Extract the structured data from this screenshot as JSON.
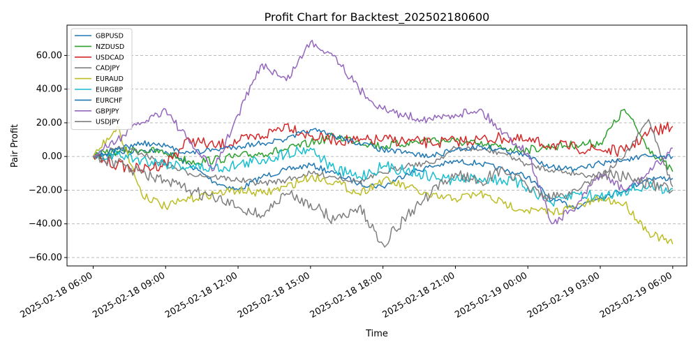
{
  "chart_data": {
    "type": "line",
    "title": "Profit Chart for Backtest_202502180600",
    "xlabel": "Time",
    "ylabel": "Pair Profit",
    "ylim": [
      -65,
      78
    ],
    "xlim": [
      "2025-02-18 04:55",
      "2025-02-19 06:35"
    ],
    "y_ticks": [
      -60,
      -40,
      -20,
      0,
      20,
      40,
      60
    ],
    "y_tick_labels": [
      "−60.00",
      "−40.00",
      "−20.00",
      "0.00",
      "20.00",
      "40.00",
      "60.00"
    ],
    "x_ticks": [
      "2025-02-18 06:00",
      "2025-02-18 09:00",
      "2025-02-18 12:00",
      "2025-02-18 15:00",
      "2025-02-18 18:00",
      "2025-02-18 21:00",
      "2025-02-19 00:00",
      "2025-02-19 03:00",
      "2025-02-19 06:00"
    ],
    "x_tick_labels": [
      "2025-02-18 06:00",
      "2025-02-18 09:00",
      "2025-02-18 12:00",
      "2025-02-18 15:00",
      "2025-02-18 18:00",
      "2025-02-18 21:00",
      "2025-02-19 00:00",
      "2025-02-19 03:00",
      "2025-02-19 06:00"
    ],
    "grid": "horizontal dashed",
    "legend": "top-left",
    "x": [
      "2025-02-18 06:00",
      "2025-02-18 07:00",
      "2025-02-18 08:00",
      "2025-02-18 09:00",
      "2025-02-18 10:00",
      "2025-02-18 11:00",
      "2025-02-18 12:00",
      "2025-02-18 13:00",
      "2025-02-18 14:00",
      "2025-02-18 15:00",
      "2025-02-18 16:00",
      "2025-02-18 17:00",
      "2025-02-18 18:00",
      "2025-02-18 19:00",
      "2025-02-18 20:00",
      "2025-02-18 21:00",
      "2025-02-18 22:00",
      "2025-02-18 23:00",
      "2025-02-19 00:00",
      "2025-02-19 01:00",
      "2025-02-19 02:00",
      "2025-02-19 03:00",
      "2025-02-19 04:00",
      "2025-02-19 05:00",
      "2025-02-19 06:00"
    ],
    "series": [
      {
        "name": "GBPUSD",
        "color": "#1f77b4",
        "values": [
          0,
          2,
          4,
          3,
          -5,
          -15,
          -20,
          -12,
          -8,
          -5,
          -10,
          -16,
          -18,
          -10,
          -6,
          -3,
          -4,
          -8,
          -12,
          -26,
          -30,
          -24,
          -20,
          -13,
          -13
        ]
      },
      {
        "name": "NZDUSD",
        "color": "#2ca02c",
        "values": [
          0,
          3,
          4,
          2,
          -3,
          -2,
          0,
          2,
          4,
          8,
          12,
          9,
          6,
          8,
          10,
          9,
          7,
          5,
          4,
          6,
          7,
          8,
          28,
          5,
          -9
        ]
      },
      {
        "name": "USDCAD",
        "color": "#d62728",
        "values": [
          0,
          -5,
          -8,
          -4,
          10,
          6,
          9,
          12,
          19,
          12,
          10,
          9,
          10,
          9,
          8,
          9,
          10,
          11,
          9,
          7,
          5,
          4,
          3,
          14,
          18
        ]
      },
      {
        "name": "CADJPY",
        "color": "#7f7f7f",
        "values": [
          0,
          5,
          2,
          -5,
          -10,
          -12,
          -14,
          -16,
          -14,
          -10,
          -12,
          -15,
          -10,
          -5,
          -4,
          5,
          4,
          2,
          -5,
          -8,
          -10,
          -12,
          0,
          22,
          -18
        ]
      },
      {
        "name": "EURAUD",
        "color": "#bcbd22",
        "values": [
          0,
          18,
          -22,
          -30,
          -25,
          -22,
          -20,
          -22,
          -18,
          -12,
          -15,
          -22,
          -14,
          -18,
          -24,
          -25,
          -22,
          -28,
          -32,
          -33,
          -30,
          -25,
          -28,
          -45,
          -52
        ]
      },
      {
        "name": "EURGBP",
        "color": "#17becf",
        "values": [
          0,
          1,
          -2,
          -4,
          -6,
          -7,
          -5,
          -2,
          2,
          5,
          -8,
          -12,
          -6,
          -8,
          -12,
          -14,
          -13,
          -14,
          -18,
          -28,
          -22,
          -24,
          -20,
          -18,
          -19
        ]
      },
      {
        "name": "EURCHF",
        "color": "#1f77b4",
        "values": [
          0,
          4,
          8,
          6,
          2,
          4,
          6,
          8,
          10,
          16,
          12,
          8,
          4,
          2,
          0,
          4,
          6,
          4,
          0,
          -6,
          -8,
          -4,
          -2,
          0,
          0
        ]
      },
      {
        "name": "GBPJPY",
        "color": "#9467bd",
        "values": [
          0,
          10,
          20,
          28,
          8,
          -8,
          25,
          55,
          45,
          68,
          60,
          40,
          28,
          24,
          22,
          25,
          28,
          14,
          2,
          -40,
          -30,
          -10,
          -20,
          -10,
          5
        ]
      },
      {
        "name": "USDJPY",
        "color": "#7f7f7f",
        "values": [
          0,
          -4,
          -10,
          -15,
          -20,
          -25,
          -30,
          -35,
          -22,
          -28,
          -38,
          -30,
          -52,
          -35,
          -22,
          -10,
          -15,
          -8,
          -18,
          -25,
          -20,
          -10,
          -12,
          -16,
          -20
        ]
      }
    ]
  }
}
